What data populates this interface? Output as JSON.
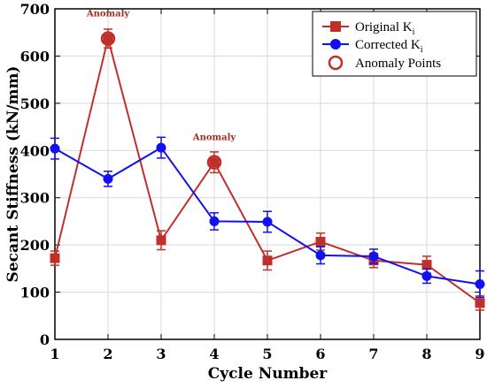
{
  "chart_data": {
    "type": "line",
    "xlabel": "Cycle Number",
    "ylabel": "Secant Stiffness (kN/mm)",
    "xlim": [
      1,
      9
    ],
    "ylim": [
      0,
      700
    ],
    "x_ticks": [
      "1",
      "2",
      "3",
      "4",
      "5",
      "6",
      "7",
      "8",
      "9"
    ],
    "y_ticks": [
      "0",
      "100",
      "200",
      "300",
      "400",
      "500",
      "600",
      "700"
    ],
    "grid": true,
    "legend_position": "top-right",
    "x": [
      1,
      2,
      3,
      4,
      5,
      6,
      7,
      8,
      9
    ],
    "series": [
      {
        "name": "Original K",
        "name_subscript": "i",
        "marker": "square",
        "color": "#c0302b",
        "values": [
          172,
          637,
          210,
          375,
          167,
          207,
          167,
          158,
          77
        ],
        "errors": [
          15,
          20,
          20,
          22,
          20,
          18,
          15,
          18,
          15
        ]
      },
      {
        "name": "Corrected K",
        "name_subscript": "i",
        "marker": "circle",
        "color": "#1010f0",
        "values": [
          404,
          340,
          406,
          250,
          249,
          178,
          176,
          134,
          117
        ],
        "errors": [
          22,
          16,
          22,
          18,
          22,
          18,
          15,
          15,
          28
        ]
      }
    ],
    "anomaly_series": {
      "name": "Anomaly Points",
      "color": "#c0302b",
      "points": [
        {
          "x": 2,
          "y": 637,
          "label": "Anomaly"
        },
        {
          "x": 4,
          "y": 375,
          "label": "Anomaly"
        }
      ]
    }
  }
}
